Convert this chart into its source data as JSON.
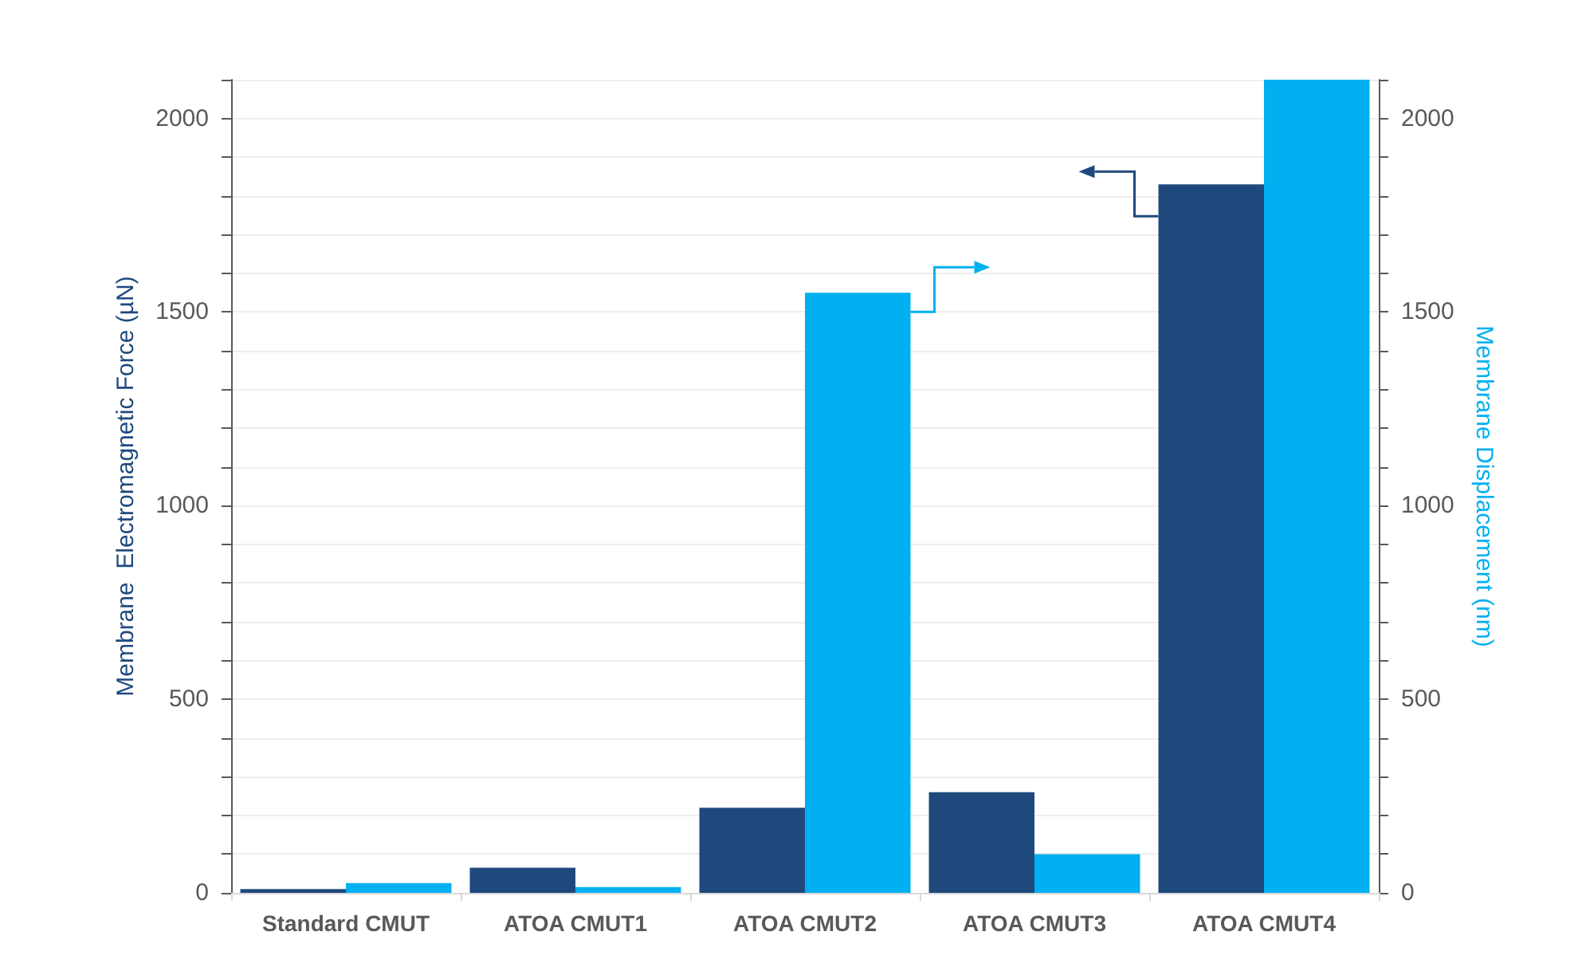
{
  "chart_data": {
    "type": "bar",
    "ylabel": "Membrane  Electromagnetic Force (µN)",
    "y2label": "Membrane Displacement (nm)",
    "categories": [
      "Standard CMUT",
      "ATOA CMUT1",
      "ATOA CMUT2",
      "ATOA CMUT3",
      "ATOA CMUT4"
    ],
    "series": [
      {
        "color": "#1f497d",
        "values": [
          10,
          65,
          220,
          260,
          1830
        ]
      },
      {
        "color": "#00b0f0",
        "axis": "y2",
        "values": [
          25,
          15,
          1550,
          100,
          2100
        ]
      }
    ],
    "ylim": [
      0,
      2100
    ],
    "yticks": [
      0,
      {
        "value": 100,
        "label": null
      },
      {
        "value": 200,
        "label": null
      },
      {
        "value": 300,
        "label": null
      },
      {
        "value": 400,
        "label": null
      },
      500,
      {
        "value": 600,
        "label": null
      },
      {
        "value": 700,
        "label": null
      },
      {
        "value": 800,
        "label": null
      },
      {
        "value": 900,
        "label": null
      },
      1000,
      {
        "value": 1100,
        "label": null
      },
      {
        "value": 1200,
        "label": null
      },
      {
        "value": 1300,
        "label": null
      },
      {
        "value": 1400,
        "label": null
      },
      1500,
      {
        "value": 1600,
        "label": null
      },
      {
        "value": 1700,
        "label": null
      },
      {
        "value": 1800,
        "label": null
      },
      {
        "value": 1900,
        "label": null
      },
      2000,
      {
        "value": 2100,
        "label": null
      }
    ],
    "y2lim": [
      0,
      2100
    ],
    "y2ticks": [
      0,
      {
        "value": 100,
        "label": null
      },
      {
        "value": 200,
        "label": null
      },
      {
        "value": 300,
        "label": null
      },
      {
        "value": 400,
        "label": null
      },
      500,
      {
        "value": 600,
        "label": null
      },
      {
        "value": 700,
        "label": null
      },
      {
        "value": 800,
        "label": null
      },
      {
        "value": 900,
        "label": null
      },
      1000,
      {
        "value": 1100,
        "label": null
      },
      {
        "value": 1200,
        "label": null
      },
      {
        "value": 1300,
        "label": null
      },
      {
        "value": 1400,
        "label": null
      },
      1500,
      {
        "value": 1600,
        "label": null
      },
      {
        "value": 1700,
        "label": null
      },
      {
        "value": 1800,
        "label": null
      },
      {
        "value": 1900,
        "label": null
      },
      2000,
      {
        "value": 2100,
        "label": null
      }
    ],
    "grid": "y"
  }
}
